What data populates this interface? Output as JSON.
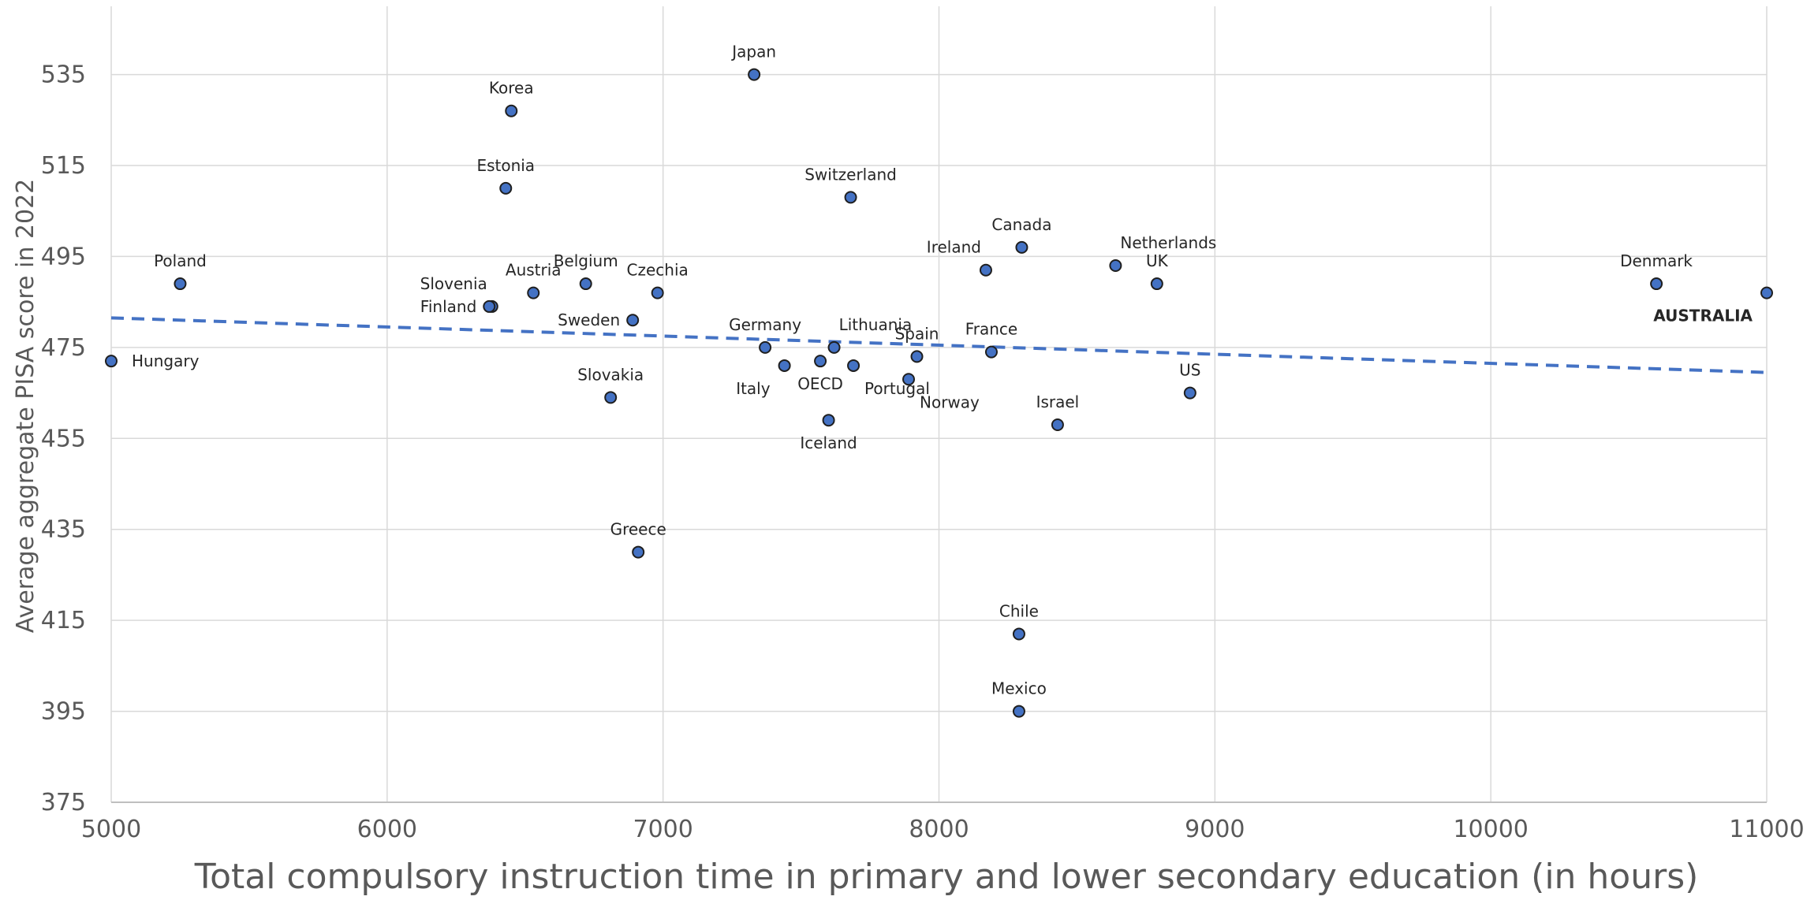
{
  "chart_data": {
    "type": "scatter",
    "title": "",
    "xlabel": "Total compulsory instruction time in primary and lower secondary education (in hours)",
    "ylabel": "Average aggregate PISA score in 2022",
    "xlim": [
      5000,
      11000
    ],
    "ylim": [
      375,
      550
    ],
    "xticks": [
      "5000",
      "6000",
      "7000",
      "8000",
      "9000",
      "10000",
      "11000"
    ],
    "yticks": [
      "375",
      "395",
      "415",
      "435",
      "455",
      "475",
      "495",
      "515",
      "535"
    ],
    "grid": true,
    "colors": {
      "point_fill": "#4472C4",
      "point_stroke": "#1F1F1F",
      "trendline": "#4472C4",
      "grid": "#D9D9D9",
      "axis": "#BFBFBF"
    },
    "trendline": {
      "style": "dashed",
      "points": [
        [
          5000,
          481.5
        ],
        [
          11000,
          469.5
        ]
      ]
    },
    "points": [
      {
        "name": "Japan",
        "x": 7330,
        "y": 535,
        "label_pos": "above"
      },
      {
        "name": "Korea",
        "x": 6450,
        "y": 527,
        "label_pos": "above"
      },
      {
        "name": "Estonia",
        "x": 6430,
        "y": 510,
        "label_pos": "above"
      },
      {
        "name": "Switzerland",
        "x": 7680,
        "y": 508,
        "label_pos": "above"
      },
      {
        "name": "Canada",
        "x": 8300,
        "y": 497,
        "label_pos": "above"
      },
      {
        "name": "Ireland",
        "x": 8170,
        "y": 492,
        "label_pos": "above-left"
      },
      {
        "name": "Netherlands",
        "x": 8640,
        "y": 493,
        "label_pos": "above-right"
      },
      {
        "name": "UK",
        "x": 8790,
        "y": 489,
        "label_pos": "above"
      },
      {
        "name": "Denmark",
        "x": 10600,
        "y": 489,
        "label_pos": "above"
      },
      {
        "name": "AUSTRALIA",
        "x": 11000,
        "y": 487,
        "label_pos": "below-left",
        "highlight": true
      },
      {
        "name": "Poland",
        "x": 5250,
        "y": 489,
        "label_pos": "above"
      },
      {
        "name": "Belgium",
        "x": 6720,
        "y": 489,
        "label_pos": "above"
      },
      {
        "name": "Austria",
        "x": 6530,
        "y": 487,
        "label_pos": "above"
      },
      {
        "name": "Slovenia",
        "x": 6380,
        "y": 484,
        "label_pos": "above-left"
      },
      {
        "name": "Czechia",
        "x": 6980,
        "y": 487,
        "label_pos": "above"
      },
      {
        "name": "Finland",
        "x": 6370,
        "y": 484,
        "label_pos": "left"
      },
      {
        "name": "Sweden",
        "x": 6890,
        "y": 481,
        "label_pos": "left"
      },
      {
        "name": "Germany",
        "x": 7370,
        "y": 475,
        "label_pos": "above"
      },
      {
        "name": "Lithuania",
        "x": 7620,
        "y": 475,
        "label_pos": "above-right"
      },
      {
        "name": "Spain",
        "x": 7920,
        "y": 473,
        "label_pos": "above"
      },
      {
        "name": "France",
        "x": 8190,
        "y": 474,
        "label_pos": "above"
      },
      {
        "name": "Hungary",
        "x": 5000,
        "y": 472,
        "label_pos": "right"
      },
      {
        "name": "Italy",
        "x": 7440,
        "y": 471,
        "label_pos": "below-left"
      },
      {
        "name": "OECD",
        "x": 7570,
        "y": 472,
        "label_pos": "below"
      },
      {
        "name": "Portugal",
        "x": 7690,
        "y": 471,
        "label_pos": "below-right"
      },
      {
        "name": "Norway",
        "x": 7890,
        "y": 468,
        "label_pos": "below-right"
      },
      {
        "name": "Slovakia",
        "x": 6810,
        "y": 464,
        "label_pos": "above"
      },
      {
        "name": "US",
        "x": 8910,
        "y": 465,
        "label_pos": "above"
      },
      {
        "name": "Iceland",
        "x": 7600,
        "y": 459,
        "label_pos": "below"
      },
      {
        "name": "Israel",
        "x": 8430,
        "y": 458,
        "label_pos": "above"
      },
      {
        "name": "Greece",
        "x": 6910,
        "y": 430,
        "label_pos": "above"
      },
      {
        "name": "Chile",
        "x": 8290,
        "y": 412,
        "label_pos": "above"
      },
      {
        "name": "Mexico",
        "x": 8290,
        "y": 395,
        "label_pos": "above"
      }
    ]
  }
}
